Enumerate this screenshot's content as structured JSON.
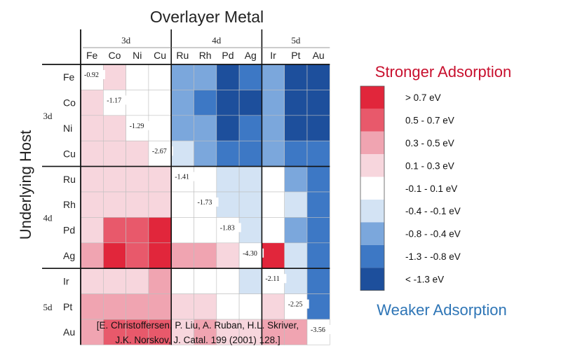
{
  "chart_data": {
    "type": "heatmap",
    "title": "Overlayer Metal",
    "ylabel": "Underlying Host",
    "column_groups": [
      {
        "label": "3d",
        "columns": [
          "Fe",
          "Co",
          "Ni",
          "Cu"
        ]
      },
      {
        "label": "4d",
        "columns": [
          "Ru",
          "Rh",
          "Pd",
          "Ag"
        ]
      },
      {
        "label": "5d",
        "columns": [
          "Ir",
          "Pt",
          "Au"
        ]
      }
    ],
    "row_groups": [
      {
        "label": "3d",
        "rows": [
          "Fe",
          "Co",
          "Ni",
          "Cu"
        ]
      },
      {
        "label": "4d",
        "rows": [
          "Ru",
          "Rh",
          "Pd",
          "Ag"
        ]
      },
      {
        "label": "5d",
        "rows": [
          "Ir",
          "Pt",
          "Au"
        ]
      }
    ],
    "columns": [
      "Fe",
      "Co",
      "Ni",
      "Cu",
      "Ru",
      "Rh",
      "Pd",
      "Ag",
      "Ir",
      "Pt",
      "Au"
    ],
    "rows": [
      "Fe",
      "Co",
      "Ni",
      "Cu",
      "Ru",
      "Rh",
      "Pd",
      "Ag",
      "Ir",
      "Pt",
      "Au"
    ],
    "diagonal_labels": [
      "-0.92",
      "-1.17",
      "-1.29",
      "-2.67",
      "-1.41",
      "-1.73",
      "-1.83",
      "-4.30",
      "-2.11",
      "-2.25",
      "-3.56"
    ],
    "bins": [
      {
        "label": "> 0.7 eV",
        "color": "#e1263b"
      },
      {
        "label": "0.5 - 0.7 eV",
        "color": "#e8596b"
      },
      {
        "label": "0.3 - 0.5 eV",
        "color": "#f0a4b1"
      },
      {
        "label": "0.1 - 0.3 eV",
        "color": "#f7d6dd"
      },
      {
        "label": "-0.1 - 0.1 eV",
        "color": "#ffffff"
      },
      {
        "label": "-0.4 - -0.1 eV",
        "color": "#d3e3f4"
      },
      {
        "label": "-0.8 - -0.4 eV",
        "color": "#7ba7dc"
      },
      {
        "label": "-1.3 - -0.8 eV",
        "color": "#3d78c5"
      },
      {
        "label": "< -1.3 eV",
        "color": "#1d4f9c"
      }
    ],
    "grid_bins": [
      [
        4,
        3,
        4,
        4,
        6,
        6,
        8,
        7,
        6,
        8,
        8
      ],
      [
        3,
        4,
        4,
        4,
        6,
        7,
        8,
        8,
        6,
        8,
        8
      ],
      [
        3,
        3,
        4,
        4,
        6,
        6,
        8,
        7,
        6,
        8,
        8
      ],
      [
        3,
        3,
        3,
        4,
        5,
        6,
        7,
        7,
        6,
        7,
        7
      ],
      [
        3,
        3,
        3,
        3,
        4,
        4,
        5,
        5,
        4,
        6,
        7
      ],
      [
        3,
        3,
        3,
        3,
        4,
        4,
        5,
        5,
        4,
        5,
        7
      ],
      [
        3,
        1,
        1,
        0,
        4,
        4,
        4,
        5,
        4,
        6,
        7
      ],
      [
        2,
        0,
        1,
        0,
        2,
        2,
        3,
        4,
        0,
        5,
        7
      ],
      [
        3,
        3,
        3,
        2,
        4,
        4,
        4,
        5,
        4,
        5,
        7
      ],
      [
        2,
        2,
        2,
        2,
        3,
        3,
        4,
        4,
        3,
        4,
        7
      ],
      [
        2,
        1,
        1,
        1,
        3,
        2,
        3,
        3,
        2,
        2,
        4
      ]
    ],
    "legend_top_label": "Stronger Adsorption",
    "legend_bottom_label": "Weaker Adsorption",
    "legend_top_color": "#c8102e",
    "legend_bottom_color": "#2e75b6",
    "citation": [
      "[E. Christoffersen, P. Liu, A. Ruban, H.L. Skriver,",
      "J.K. Norskov, J. Catal. 199 (2001) 128.]"
    ]
  }
}
